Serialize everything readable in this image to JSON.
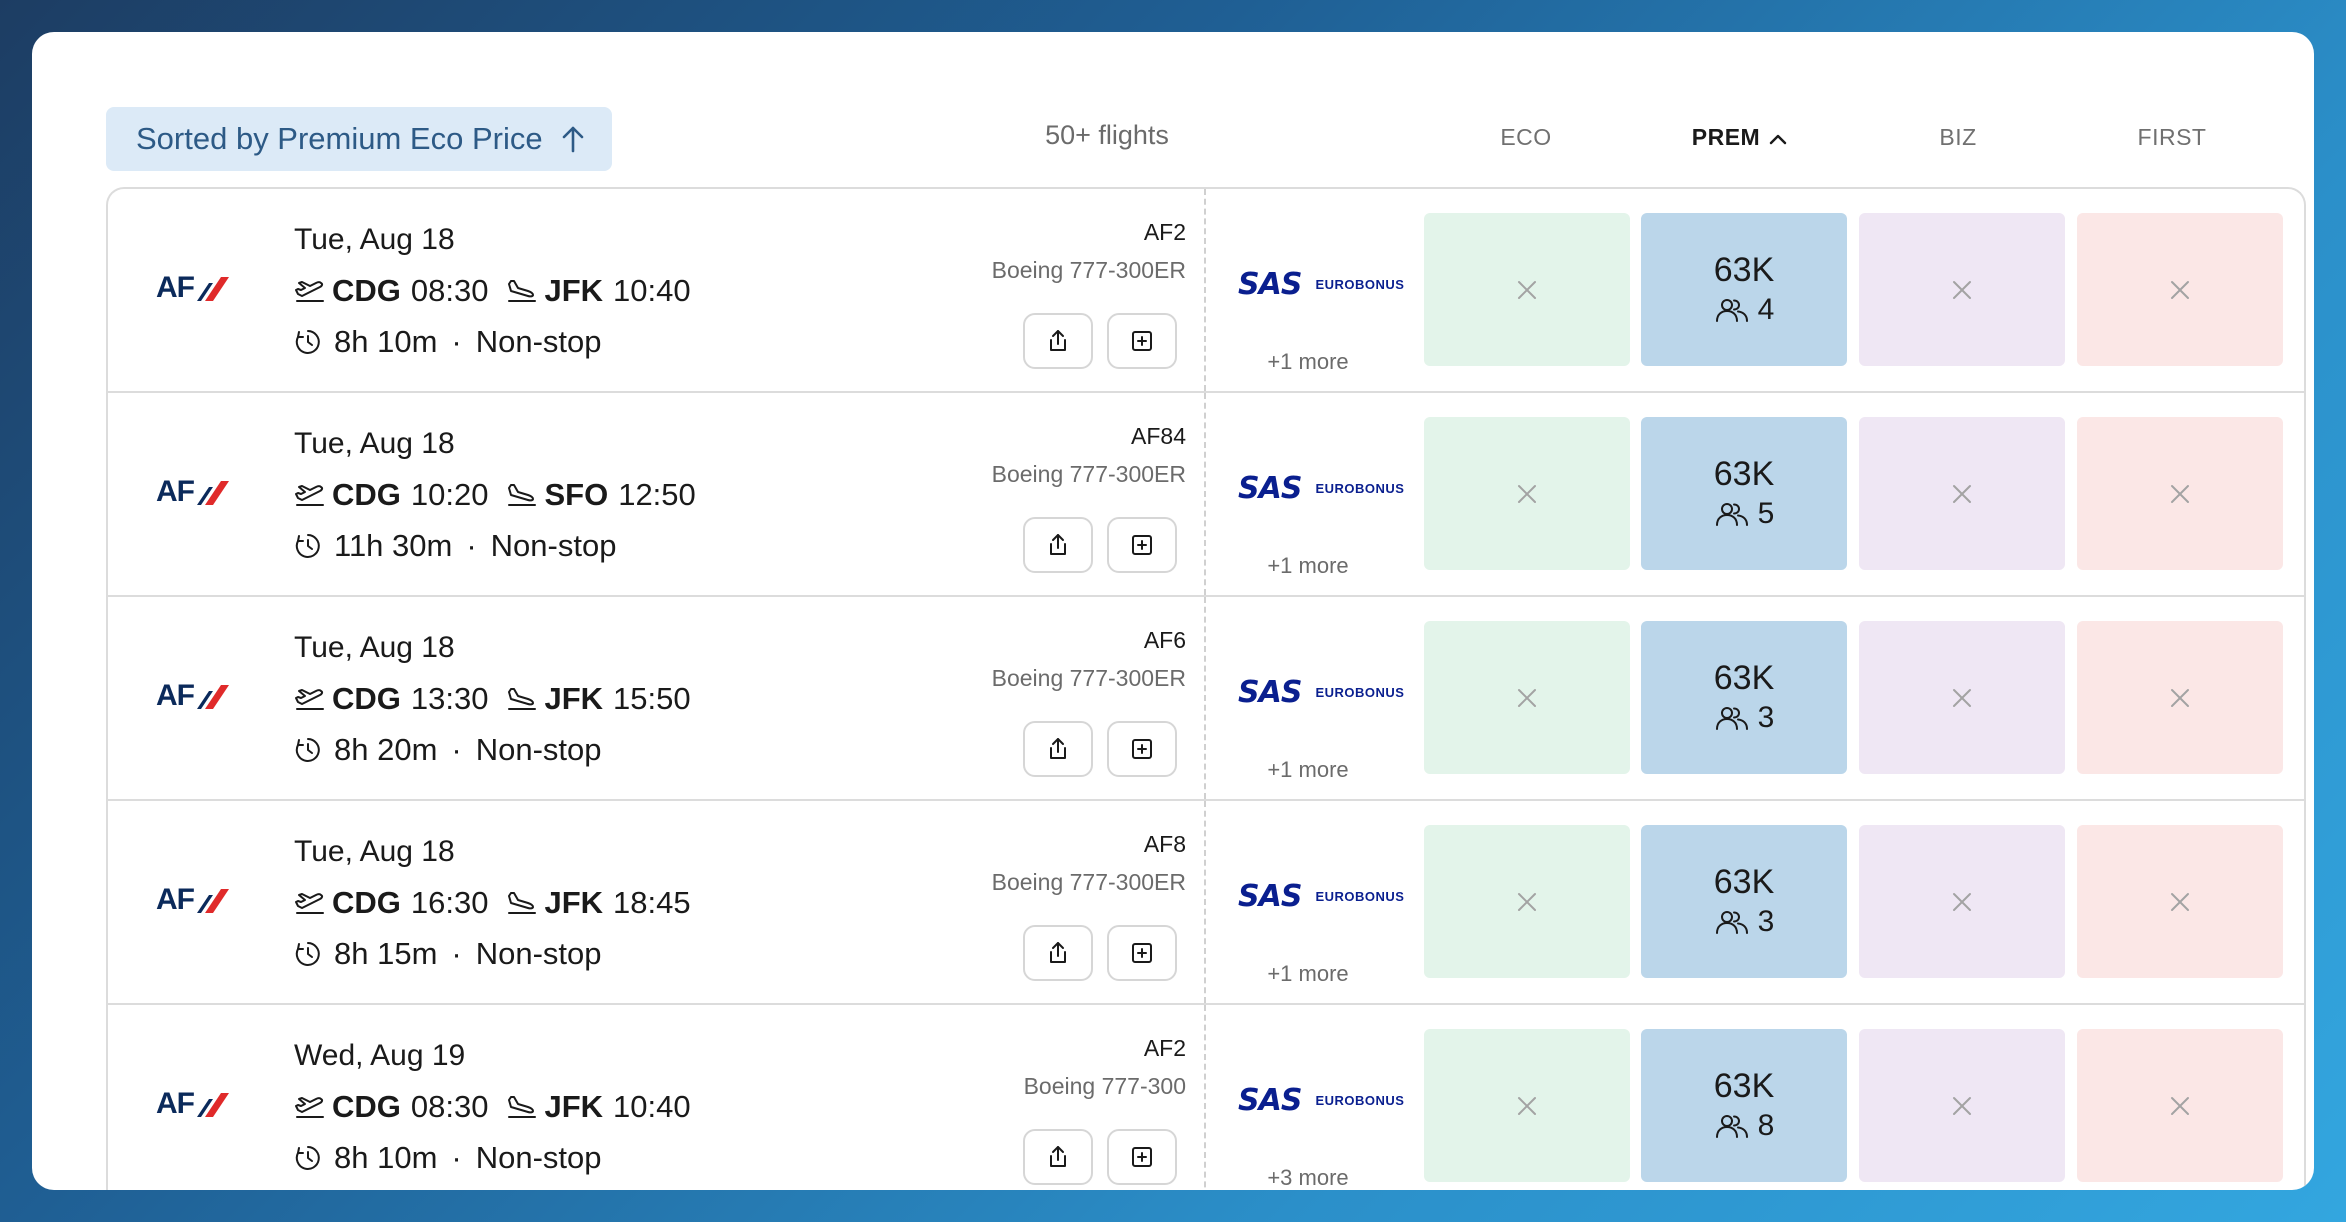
{
  "toolbar": {
    "sort_label": "Sorted by Premium Eco Price",
    "results_count": "50+ flights"
  },
  "columns": [
    {
      "key": "eco",
      "label": "ECO"
    },
    {
      "key": "prem",
      "label": "PREM"
    },
    {
      "key": "biz",
      "label": "BIZ"
    },
    {
      "key": "first",
      "label": "FIRST"
    }
  ],
  "flights": [
    {
      "airline_logo": "AF",
      "date": "Tue, Aug 18",
      "origin": "CDG",
      "depart": "08:30",
      "destination": "JFK",
      "arrive": "10:40",
      "duration": "8h 10m",
      "stops": "Non-stop",
      "flight_number": "AF2",
      "aircraft": "Boeing 777-300ER",
      "program_logo": "SAS",
      "program_sub": "EUROBONUS",
      "more_programs": "+1 more",
      "prem_price": "63K",
      "prem_seats": "4"
    },
    {
      "airline_logo": "AF",
      "date": "Tue, Aug 18",
      "origin": "CDG",
      "depart": "10:20",
      "destination": "SFO",
      "arrive": "12:50",
      "duration": "11h 30m",
      "stops": "Non-stop",
      "flight_number": "AF84",
      "aircraft": "Boeing 777-300ER",
      "program_logo": "SAS",
      "program_sub": "EUROBONUS",
      "more_programs": "+1 more",
      "prem_price": "63K",
      "prem_seats": "5"
    },
    {
      "airline_logo": "AF",
      "date": "Tue, Aug 18",
      "origin": "CDG",
      "depart": "13:30",
      "destination": "JFK",
      "arrive": "15:50",
      "duration": "8h 20m",
      "stops": "Non-stop",
      "flight_number": "AF6",
      "aircraft": "Boeing 777-300ER",
      "program_logo": "SAS",
      "program_sub": "EUROBONUS",
      "more_programs": "+1 more",
      "prem_price": "63K",
      "prem_seats": "3"
    },
    {
      "airline_logo": "AF",
      "date": "Tue, Aug 18",
      "origin": "CDG",
      "depart": "16:30",
      "destination": "JFK",
      "arrive": "18:45",
      "duration": "8h 15m",
      "stops": "Non-stop",
      "flight_number": "AF8",
      "aircraft": "Boeing 777-300ER",
      "program_logo": "SAS",
      "program_sub": "EUROBONUS",
      "more_programs": "+1 more",
      "prem_price": "63K",
      "prem_seats": "3"
    },
    {
      "airline_logo": "AF",
      "date": "Wed, Aug 19",
      "origin": "CDG",
      "depart": "08:30",
      "destination": "JFK",
      "arrive": "10:40",
      "duration": "8h 10m",
      "stops": "Non-stop",
      "flight_number": "AF2",
      "aircraft": "Boeing 777-300",
      "program_logo": "SAS",
      "program_sub": "EUROBONUS",
      "more_programs": "+3 more",
      "prem_price": "63K",
      "prem_seats": "8"
    }
  ],
  "icons": {
    "sort": "arrow-up-icon",
    "active_column": "chevron-up-icon",
    "takeoff": "plane-takeoff-icon",
    "landing": "plane-landing-icon",
    "duration": "clock-icon",
    "share": "share-icon",
    "add": "plus-square-icon",
    "unavailable": "x-icon",
    "seats": "users-icon"
  },
  "colors": {
    "eco": "#e3f4ea",
    "prem": "#bbd6ea",
    "biz": "#efe7f4",
    "first": "#fbe7e6",
    "sort_bg": "#dceaf7",
    "airline_red": "#e02a2a",
    "airline_navy": "#0b2a5b",
    "sas_blue": "#0a1f8f"
  }
}
